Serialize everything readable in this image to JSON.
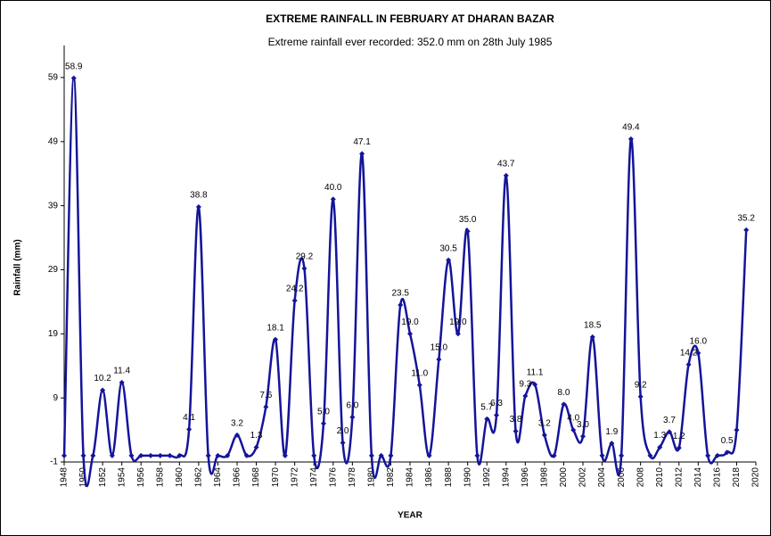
{
  "chart_data": {
    "type": "line",
    "title": "EXTREME RAINFALL IN FEBRUARY AT DHARAN BAZAR",
    "subtitle": "Extreme rainfall ever recorded: 352.0 mm on 28th July 1985",
    "x_label": "YEAR",
    "y_label": "Rainfall (mm)",
    "x": [
      1948,
      1949,
      1950,
      1951,
      1952,
      1953,
      1954,
      1955,
      1956,
      1957,
      1958,
      1959,
      1960,
      1961,
      1962,
      1963,
      1964,
      1965,
      1966,
      1967,
      1968,
      1969,
      1970,
      1971,
      1972,
      1973,
      1974,
      1975,
      1976,
      1977,
      1978,
      1979,
      1980,
      1981,
      1982,
      1983,
      1984,
      1985,
      1986,
      1987,
      1988,
      1989,
      1990,
      1991,
      1992,
      1993,
      1994,
      1995,
      1996,
      1997,
      1998,
      1999,
      2000,
      2001,
      2002,
      2003,
      2004,
      2005,
      2006,
      2007,
      2008,
      2009,
      2010,
      2011,
      2012,
      2013,
      2014,
      2015,
      2016,
      2017,
      2018,
      2019
    ],
    "series": [
      {
        "name": "Rainfall",
        "color": "#14149a",
        "values": [
          0,
          58.9,
          0,
          0,
          10.2,
          0,
          11.4,
          0,
          0,
          0,
          0,
          0,
          0,
          4.1,
          38.8,
          0,
          0,
          0,
          3.2,
          0,
          1.3,
          7.6,
          18.1,
          0,
          24.2,
          29.2,
          0,
          5.0,
          40.0,
          2.0,
          6.0,
          47.1,
          0,
          0,
          0,
          23.5,
          19.0,
          11.0,
          0,
          15.0,
          30.5,
          19.0,
          35.0,
          0,
          5.7,
          6.3,
          43.7,
          3.8,
          9.3,
          11.1,
          3.2,
          0,
          8.0,
          4.0,
          3.0,
          18.5,
          0,
          1.9,
          0,
          49.4,
          9.2,
          0,
          1.3,
          3.7,
          1.2,
          14.2,
          16.0,
          0,
          0,
          0.5,
          4.0,
          35.2
        ],
        "value_labels": [
          null,
          "58.9",
          null,
          null,
          "10.2",
          null,
          "11.4",
          null,
          null,
          null,
          null,
          null,
          null,
          "4.1",
          "38.8",
          null,
          null,
          null,
          "3.2",
          null,
          "1.3",
          "7.6",
          "18.1",
          null,
          "24.2",
          "29.2",
          null,
          "5.0",
          "40.0",
          "2.0",
          "6.0",
          "47.1",
          null,
          null,
          null,
          "23.5",
          "19.0",
          "11.0",
          null,
          "15.0",
          "30.5",
          "19.0",
          "35.0",
          null,
          "5.7",
          "6.3",
          "43.7",
          "3.8",
          "9.3",
          "11.1",
          "3.2",
          null,
          "8.0",
          "4.0",
          "3.0",
          "18.5",
          null,
          "1.9",
          null,
          "49.4",
          "9.2",
          null,
          "1.3",
          "3.7",
          "1.2",
          "14.2",
          "16.0",
          null,
          null,
          "0.5",
          null,
          "35.2"
        ]
      }
    ],
    "xlim": [
      1948,
      2020
    ],
    "xticks": [
      1948,
      1950,
      1952,
      1954,
      1956,
      1958,
      1960,
      1962,
      1964,
      1966,
      1968,
      1970,
      1972,
      1974,
      1976,
      1978,
      1980,
      1982,
      1984,
      1986,
      1988,
      1990,
      1992,
      1994,
      1996,
      1998,
      2000,
      2002,
      2004,
      2006,
      2008,
      2010,
      2012,
      2014,
      2016,
      2018,
      2020
    ],
    "ylim": [
      -1,
      64
    ],
    "yticks": [
      -1,
      9,
      19,
      29,
      39,
      49,
      59
    ],
    "grid": false
  }
}
